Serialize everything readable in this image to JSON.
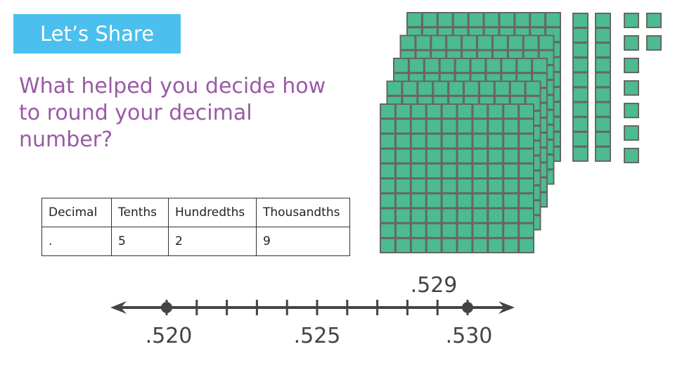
{
  "banner": {
    "title": "Let’s Share"
  },
  "question": "What helped you decide how to round your decimal number?",
  "place_value_table": {
    "headers": [
      "Decimal",
      "Tenths",
      "Hundredths",
      "Thousandths"
    ],
    "row": [
      ".",
      "5",
      "2",
      "9"
    ]
  },
  "base_ten_blocks": {
    "flats": 5,
    "rods": 2,
    "units": 9,
    "fill": "#4cbb8f",
    "stroke": "#666666"
  },
  "number_line": {
    "start": 0.52,
    "end": 0.53,
    "step": 0.001,
    "labels": [
      ".520",
      ".525",
      ".530"
    ],
    "highlight_label": ".529",
    "highlight_color": "#f5a023",
    "line_color": "#444444"
  }
}
